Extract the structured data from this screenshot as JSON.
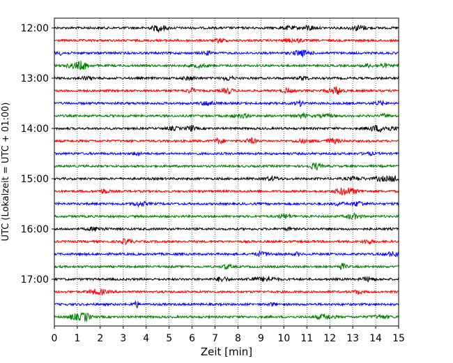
{
  "chart_data": {
    "type": "line",
    "title": "",
    "xlabel": "Zeit  [min]",
    "ylabel": "UTC (Lokalzeit = UTC + 01:00)",
    "xlim": [
      0,
      15
    ],
    "x_ticks": [
      0,
      1,
      2,
      3,
      4,
      5,
      6,
      7,
      8,
      9,
      10,
      11,
      12,
      13,
      14,
      15
    ],
    "x_grid": "dotted vertical lines at each minute",
    "y_ticks": [
      "12:00",
      "13:00",
      "14:00",
      "15:00",
      "16:00",
      "17:00"
    ],
    "trace_start": "12:00",
    "trace_end": "17:45",
    "trace_interval_min": 15,
    "trace_colors": [
      "#000000",
      "#ff0000",
      "#0000ff",
      "#007f00"
    ],
    "signal": "seismogram noise, about constant amplitude, stronger bursts on some traces"
  }
}
